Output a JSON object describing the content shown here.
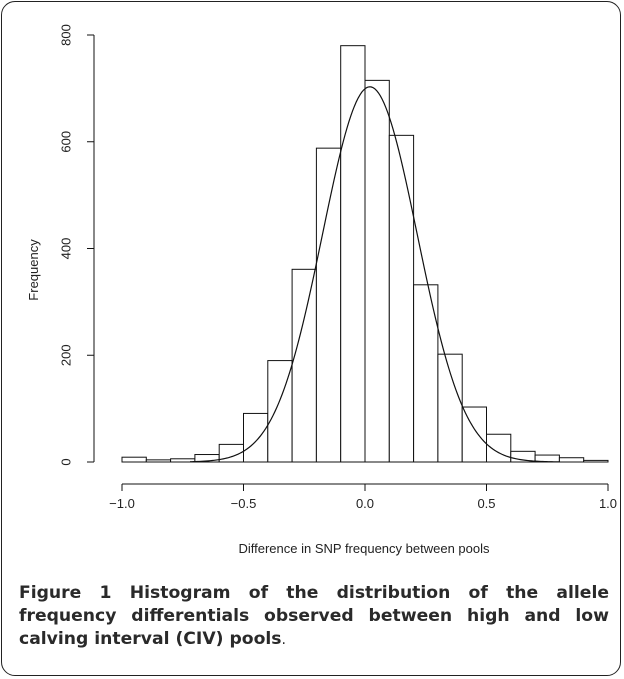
{
  "chart_data": {
    "type": "bar",
    "title": "",
    "xlabel": "Difference in SNP frequency between pools",
    "ylabel": "Frequency",
    "xlim": [
      -1.0,
      1.0
    ],
    "ylim": [
      0,
      800
    ],
    "x_ticks": [
      "-1.0",
      "-0.5",
      "0.0",
      "0.5",
      "1.0"
    ],
    "y_ticks": [
      "0",
      "200",
      "400",
      "600",
      "800"
    ],
    "bin_width": 0.1,
    "bins": [
      {
        "from": -1.0,
        "to": -0.9,
        "count": 9
      },
      {
        "from": -0.9,
        "to": -0.8,
        "count": 4
      },
      {
        "from": -0.8,
        "to": -0.7,
        "count": 6
      },
      {
        "from": -0.7,
        "to": -0.6,
        "count": 14
      },
      {
        "from": -0.6,
        "to": -0.5,
        "count": 33
      },
      {
        "from": -0.5,
        "to": -0.4,
        "count": 91
      },
      {
        "from": -0.4,
        "to": -0.3,
        "count": 190
      },
      {
        "from": -0.3,
        "to": -0.2,
        "count": 361
      },
      {
        "from": -0.2,
        "to": -0.1,
        "count": 588
      },
      {
        "from": -0.1,
        "to": 0.0,
        "count": 780
      },
      {
        "from": 0.0,
        "to": 0.1,
        "count": 715
      },
      {
        "from": 0.1,
        "to": 0.2,
        "count": 612
      },
      {
        "from": 0.2,
        "to": 0.3,
        "count": 332
      },
      {
        "from": 0.3,
        "to": 0.4,
        "count": 202
      },
      {
        "from": 0.4,
        "to": 0.5,
        "count": 103
      },
      {
        "from": 0.5,
        "to": 0.6,
        "count": 52
      },
      {
        "from": 0.6,
        "to": 0.7,
        "count": 20
      },
      {
        "from": 0.7,
        "to": 0.8,
        "count": 13
      },
      {
        "from": 0.8,
        "to": 0.9,
        "count": 8
      },
      {
        "from": 0.9,
        "to": 1.0,
        "count": 3
      }
    ],
    "density_curve": {
      "peak_x": 0.02,
      "peak_y": 703,
      "sd": 0.195
    },
    "grid": false,
    "legend": "none"
  },
  "caption": {
    "figure_label": "Figure 1",
    "text": " Histogram of the distribution of the allele frequency differentials observed between high and low calving interval (CIV) pools",
    "end": "."
  }
}
